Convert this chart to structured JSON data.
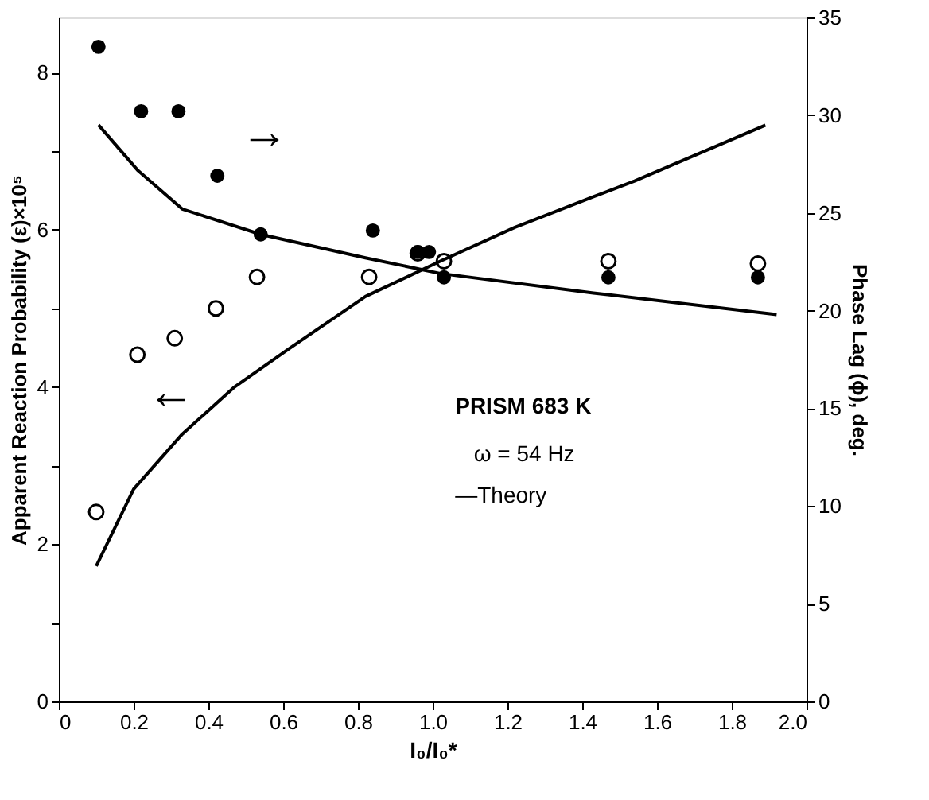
{
  "chart_data": {
    "type": "scatter",
    "xlabel": "I₀/I₀*",
    "ylabel": "Apparent Reaction Probability (ε)×10⁵",
    "y2label": "Phase Lag (ϕ), deg.",
    "xlim": [
      0,
      2
    ],
    "xticks": [
      0,
      0.2,
      0.4,
      0.6,
      0.8,
      {
        "value": 1,
        "label": "1.0"
      },
      1.2,
      1.4,
      1.6,
      1.8,
      {
        "value": 2,
        "label": "2.0"
      }
    ],
    "ylim": [
      0,
      8.7
    ],
    "yticks": [
      0,
      {
        "value": 1,
        "label": null
      },
      2,
      {
        "value": 3,
        "label": null
      },
      4,
      {
        "value": 5,
        "label": null
      },
      6,
      {
        "value": 7,
        "label": null
      },
      8
    ],
    "y2lim": [
      0,
      35
    ],
    "y2ticks": [
      0,
      5,
      10,
      15,
      20,
      25,
      30,
      35
    ],
    "grid": false,
    "legend": false,
    "marker": "circle",
    "series": [
      {
        "axis": "y2",
        "color": "#000000",
        "x": [
          0.106,
          0.22,
          0.32,
          0.424,
          0.54,
          0.84,
          0.96,
          0.99,
          1.03,
          1.47,
          1.87
        ],
        "values": [
          33.5,
          30.2,
          30.2,
          26.9,
          23.9,
          24.1,
          23.0,
          23.0,
          21.7,
          21.7,
          21.7
        ]
      },
      {
        "axis": "y",
        "color": "#000000",
        "x": [
          0.1,
          0.21,
          0.31,
          0.42,
          0.53,
          0.83,
          0.96,
          1.03,
          1.47,
          1.87
        ],
        "values": [
          2.41,
          4.41,
          4.62,
          5.0,
          5.4,
          5.4,
          5.7,
          5.6,
          5.6,
          5.57
        ]
      },
      {
        "type": "line",
        "axis": "y2",
        "color": "#000000",
        "marker": "none",
        "line_style": "solid",
        "x": [
          0.106,
          0.21,
          0.33,
          0.54,
          0.82,
          1.02,
          1.43,
          1.92
        ],
        "values": [
          29.5,
          27.2,
          25.2,
          23.9,
          22.7,
          21.9,
          20.9,
          19.8
        ]
      },
      {
        "type": "line",
        "axis": "y",
        "color": "#000000",
        "marker": "none",
        "line_style": "solid",
        "x": [
          0.1,
          0.2,
          0.33,
          0.47,
          0.62,
          0.82,
          1.02,
          1.22,
          1.43,
          1.54,
          1.89
        ],
        "values": [
          1.72,
          2.7,
          3.4,
          4.0,
          4.5,
          5.15,
          5.6,
          6.03,
          6.42,
          6.62,
          7.33
        ]
      }
    ],
    "annotations": [
      "→",
      "←",
      "PRISM  683 K",
      "ω = 54 Hz",
      "—Theory"
    ]
  }
}
